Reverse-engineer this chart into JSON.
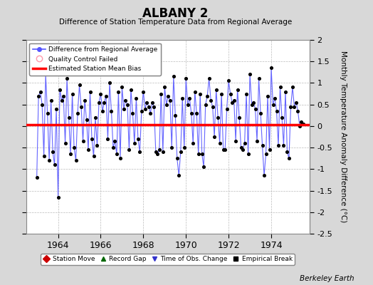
{
  "title": "ALBANY 2",
  "subtitle": "Difference of Station Temperature Data from Regional Average",
  "ylabel": "Monthly Temperature Anomaly Difference (°C)",
  "bias": 0.03,
  "xlim": [
    1962.5,
    1975.8
  ],
  "ylim": [
    -2.5,
    2.0
  ],
  "yticks": [
    -2.5,
    -2.0,
    -1.5,
    -1.0,
    -0.5,
    0.0,
    0.5,
    1.0,
    1.5,
    2.0
  ],
  "xticks": [
    1964,
    1966,
    1968,
    1970,
    1972,
    1974
  ],
  "background_color": "#d8d8d8",
  "plot_bg_color": "#ffffff",
  "line_color": "#6666ff",
  "marker_color": "#000000",
  "bias_color": "#ff0000",
  "credit": "Berkeley Earth",
  "months": [
    1963.0,
    1963.083,
    1963.167,
    1963.25,
    1963.333,
    1963.417,
    1963.5,
    1963.583,
    1963.667,
    1963.75,
    1963.833,
    1963.917,
    1964.0,
    1964.083,
    1964.167,
    1964.25,
    1964.333,
    1964.417,
    1964.5,
    1964.583,
    1964.667,
    1964.75,
    1964.833,
    1964.917,
    1965.0,
    1965.083,
    1965.167,
    1965.25,
    1965.333,
    1965.417,
    1965.5,
    1965.583,
    1965.667,
    1965.75,
    1965.833,
    1965.917,
    1966.0,
    1966.083,
    1966.167,
    1966.25,
    1966.333,
    1966.417,
    1966.5,
    1966.583,
    1966.667,
    1966.75,
    1966.833,
    1966.917,
    1967.0,
    1967.083,
    1967.167,
    1967.25,
    1967.333,
    1967.417,
    1967.5,
    1967.583,
    1967.667,
    1967.75,
    1967.833,
    1967.917,
    1968.0,
    1968.083,
    1968.167,
    1968.25,
    1968.333,
    1968.417,
    1968.5,
    1968.583,
    1968.667,
    1968.75,
    1968.833,
    1968.917,
    1969.0,
    1969.083,
    1969.167,
    1969.25,
    1969.333,
    1969.417,
    1969.5,
    1969.583,
    1969.667,
    1969.75,
    1969.833,
    1969.917,
    1970.0,
    1970.083,
    1970.167,
    1970.25,
    1970.333,
    1970.417,
    1970.5,
    1970.583,
    1970.667,
    1970.75,
    1970.833,
    1970.917,
    1971.0,
    1971.083,
    1971.167,
    1971.25,
    1971.333,
    1971.417,
    1971.5,
    1971.583,
    1971.667,
    1971.75,
    1971.833,
    1971.917,
    1972.0,
    1972.083,
    1972.167,
    1972.25,
    1972.333,
    1972.417,
    1972.5,
    1972.583,
    1972.667,
    1972.75,
    1972.833,
    1972.917,
    1973.0,
    1973.083,
    1973.167,
    1973.25,
    1973.333,
    1973.417,
    1973.5,
    1973.583,
    1973.667,
    1973.75,
    1973.833,
    1973.917,
    1974.0,
    1974.083,
    1974.167,
    1974.25,
    1974.333,
    1974.417,
    1974.5,
    1974.583,
    1974.667,
    1974.75,
    1974.833,
    1974.917,
    1975.0,
    1975.083,
    1975.167,
    1975.25,
    1975.333,
    1975.417,
    1975.5
  ],
  "values": [
    -1.2,
    0.7,
    0.8,
    0.5,
    -0.7,
    1.2,
    0.3,
    -0.8,
    0.6,
    -0.6,
    -0.9,
    0.4,
    -1.65,
    0.85,
    0.6,
    0.7,
    -0.4,
    1.1,
    0.2,
    -0.65,
    0.75,
    -0.5,
    -0.8,
    0.3,
    0.95,
    0.45,
    -0.35,
    0.6,
    0.15,
    -0.55,
    0.8,
    -0.3,
    -0.7,
    0.2,
    -0.45,
    0.55,
    0.75,
    0.35,
    0.55,
    0.7,
    -0.3,
    1.0,
    0.35,
    -0.5,
    -0.35,
    -0.65,
    0.8,
    -0.75,
    0.9,
    0.4,
    0.6,
    0.5,
    -0.55,
    0.85,
    0.3,
    -0.4,
    0.65,
    -0.3,
    -0.6,
    0.35,
    0.8,
    0.4,
    0.55,
    0.45,
    0.3,
    0.55,
    0.45,
    -0.6,
    -0.65,
    -0.55,
    0.75,
    -0.6,
    0.9,
    0.5,
    0.7,
    0.6,
    -0.5,
    1.15,
    0.25,
    -0.75,
    -1.15,
    -0.6,
    0.65,
    -0.5,
    1.1,
    0.5,
    0.65,
    0.3,
    -0.4,
    0.8,
    0.3,
    -0.65,
    0.75,
    -0.65,
    -0.95,
    0.5,
    0.7,
    1.1,
    0.6,
    0.45,
    -0.25,
    0.85,
    0.2,
    -0.4,
    0.75,
    -0.55,
    -0.55,
    0.4,
    1.05,
    0.75,
    0.55,
    0.6,
    -0.35,
    0.85,
    0.2,
    -0.5,
    -0.55,
    -0.4,
    0.75,
    -0.65,
    1.2,
    0.5,
    0.55,
    0.4,
    -0.35,
    1.1,
    0.3,
    -0.45,
    -1.15,
    -0.65,
    0.7,
    -0.55,
    1.35,
    0.5,
    0.65,
    0.35,
    -0.45,
    0.9,
    0.2,
    -0.45,
    0.8,
    -0.6,
    -0.75,
    0.45,
    0.9,
    0.45,
    0.55,
    0.35,
    0.0,
    0.1,
    0.05
  ]
}
